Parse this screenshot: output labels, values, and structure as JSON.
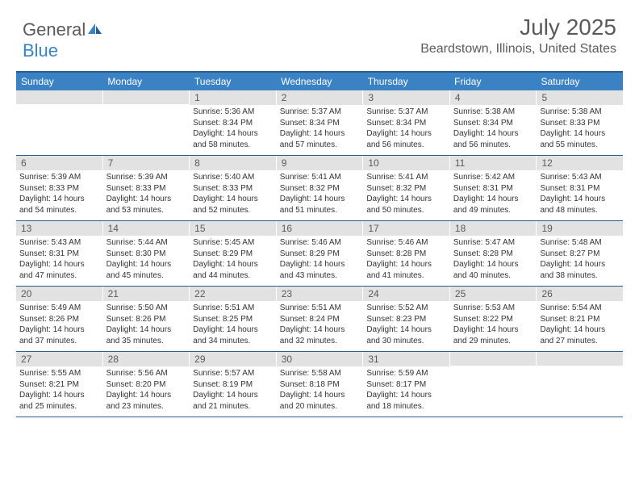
{
  "logo": {
    "textGeneral": "General",
    "textBlue": "Blue"
  },
  "title": "July 2025",
  "location": "Beardstown, Illinois, United States",
  "colors": {
    "headerBar": "#3b82c4",
    "borderTop": "#2b5d8c",
    "dayNumBg": "#e2e2e2",
    "textGray": "#5a5a5a"
  },
  "weekdays": [
    "Sunday",
    "Monday",
    "Tuesday",
    "Wednesday",
    "Thursday",
    "Friday",
    "Saturday"
  ],
  "weeks": [
    [
      {
        "n": "",
        "lines": []
      },
      {
        "n": "",
        "lines": []
      },
      {
        "n": "1",
        "lines": [
          "Sunrise: 5:36 AM",
          "Sunset: 8:34 PM",
          "Daylight: 14 hours",
          "and 58 minutes."
        ]
      },
      {
        "n": "2",
        "lines": [
          "Sunrise: 5:37 AM",
          "Sunset: 8:34 PM",
          "Daylight: 14 hours",
          "and 57 minutes."
        ]
      },
      {
        "n": "3",
        "lines": [
          "Sunrise: 5:37 AM",
          "Sunset: 8:34 PM",
          "Daylight: 14 hours",
          "and 56 minutes."
        ]
      },
      {
        "n": "4",
        "lines": [
          "Sunrise: 5:38 AM",
          "Sunset: 8:34 PM",
          "Daylight: 14 hours",
          "and 56 minutes."
        ]
      },
      {
        "n": "5",
        "lines": [
          "Sunrise: 5:38 AM",
          "Sunset: 8:33 PM",
          "Daylight: 14 hours",
          "and 55 minutes."
        ]
      }
    ],
    [
      {
        "n": "6",
        "lines": [
          "Sunrise: 5:39 AM",
          "Sunset: 8:33 PM",
          "Daylight: 14 hours",
          "and 54 minutes."
        ]
      },
      {
        "n": "7",
        "lines": [
          "Sunrise: 5:39 AM",
          "Sunset: 8:33 PM",
          "Daylight: 14 hours",
          "and 53 minutes."
        ]
      },
      {
        "n": "8",
        "lines": [
          "Sunrise: 5:40 AM",
          "Sunset: 8:33 PM",
          "Daylight: 14 hours",
          "and 52 minutes."
        ]
      },
      {
        "n": "9",
        "lines": [
          "Sunrise: 5:41 AM",
          "Sunset: 8:32 PM",
          "Daylight: 14 hours",
          "and 51 minutes."
        ]
      },
      {
        "n": "10",
        "lines": [
          "Sunrise: 5:41 AM",
          "Sunset: 8:32 PM",
          "Daylight: 14 hours",
          "and 50 minutes."
        ]
      },
      {
        "n": "11",
        "lines": [
          "Sunrise: 5:42 AM",
          "Sunset: 8:31 PM",
          "Daylight: 14 hours",
          "and 49 minutes."
        ]
      },
      {
        "n": "12",
        "lines": [
          "Sunrise: 5:43 AM",
          "Sunset: 8:31 PM",
          "Daylight: 14 hours",
          "and 48 minutes."
        ]
      }
    ],
    [
      {
        "n": "13",
        "lines": [
          "Sunrise: 5:43 AM",
          "Sunset: 8:31 PM",
          "Daylight: 14 hours",
          "and 47 minutes."
        ]
      },
      {
        "n": "14",
        "lines": [
          "Sunrise: 5:44 AM",
          "Sunset: 8:30 PM",
          "Daylight: 14 hours",
          "and 45 minutes."
        ]
      },
      {
        "n": "15",
        "lines": [
          "Sunrise: 5:45 AM",
          "Sunset: 8:29 PM",
          "Daylight: 14 hours",
          "and 44 minutes."
        ]
      },
      {
        "n": "16",
        "lines": [
          "Sunrise: 5:46 AM",
          "Sunset: 8:29 PM",
          "Daylight: 14 hours",
          "and 43 minutes."
        ]
      },
      {
        "n": "17",
        "lines": [
          "Sunrise: 5:46 AM",
          "Sunset: 8:28 PM",
          "Daylight: 14 hours",
          "and 41 minutes."
        ]
      },
      {
        "n": "18",
        "lines": [
          "Sunrise: 5:47 AM",
          "Sunset: 8:28 PM",
          "Daylight: 14 hours",
          "and 40 minutes."
        ]
      },
      {
        "n": "19",
        "lines": [
          "Sunrise: 5:48 AM",
          "Sunset: 8:27 PM",
          "Daylight: 14 hours",
          "and 38 minutes."
        ]
      }
    ],
    [
      {
        "n": "20",
        "lines": [
          "Sunrise: 5:49 AM",
          "Sunset: 8:26 PM",
          "Daylight: 14 hours",
          "and 37 minutes."
        ]
      },
      {
        "n": "21",
        "lines": [
          "Sunrise: 5:50 AM",
          "Sunset: 8:26 PM",
          "Daylight: 14 hours",
          "and 35 minutes."
        ]
      },
      {
        "n": "22",
        "lines": [
          "Sunrise: 5:51 AM",
          "Sunset: 8:25 PM",
          "Daylight: 14 hours",
          "and 34 minutes."
        ]
      },
      {
        "n": "23",
        "lines": [
          "Sunrise: 5:51 AM",
          "Sunset: 8:24 PM",
          "Daylight: 14 hours",
          "and 32 minutes."
        ]
      },
      {
        "n": "24",
        "lines": [
          "Sunrise: 5:52 AM",
          "Sunset: 8:23 PM",
          "Daylight: 14 hours",
          "and 30 minutes."
        ]
      },
      {
        "n": "25",
        "lines": [
          "Sunrise: 5:53 AM",
          "Sunset: 8:22 PM",
          "Daylight: 14 hours",
          "and 29 minutes."
        ]
      },
      {
        "n": "26",
        "lines": [
          "Sunrise: 5:54 AM",
          "Sunset: 8:21 PM",
          "Daylight: 14 hours",
          "and 27 minutes."
        ]
      }
    ],
    [
      {
        "n": "27",
        "lines": [
          "Sunrise: 5:55 AM",
          "Sunset: 8:21 PM",
          "Daylight: 14 hours",
          "and 25 minutes."
        ]
      },
      {
        "n": "28",
        "lines": [
          "Sunrise: 5:56 AM",
          "Sunset: 8:20 PM",
          "Daylight: 14 hours",
          "and 23 minutes."
        ]
      },
      {
        "n": "29",
        "lines": [
          "Sunrise: 5:57 AM",
          "Sunset: 8:19 PM",
          "Daylight: 14 hours",
          "and 21 minutes."
        ]
      },
      {
        "n": "30",
        "lines": [
          "Sunrise: 5:58 AM",
          "Sunset: 8:18 PM",
          "Daylight: 14 hours",
          "and 20 minutes."
        ]
      },
      {
        "n": "31",
        "lines": [
          "Sunrise: 5:59 AM",
          "Sunset: 8:17 PM",
          "Daylight: 14 hours",
          "and 18 minutes."
        ]
      },
      {
        "n": "",
        "lines": []
      },
      {
        "n": "",
        "lines": []
      }
    ]
  ]
}
